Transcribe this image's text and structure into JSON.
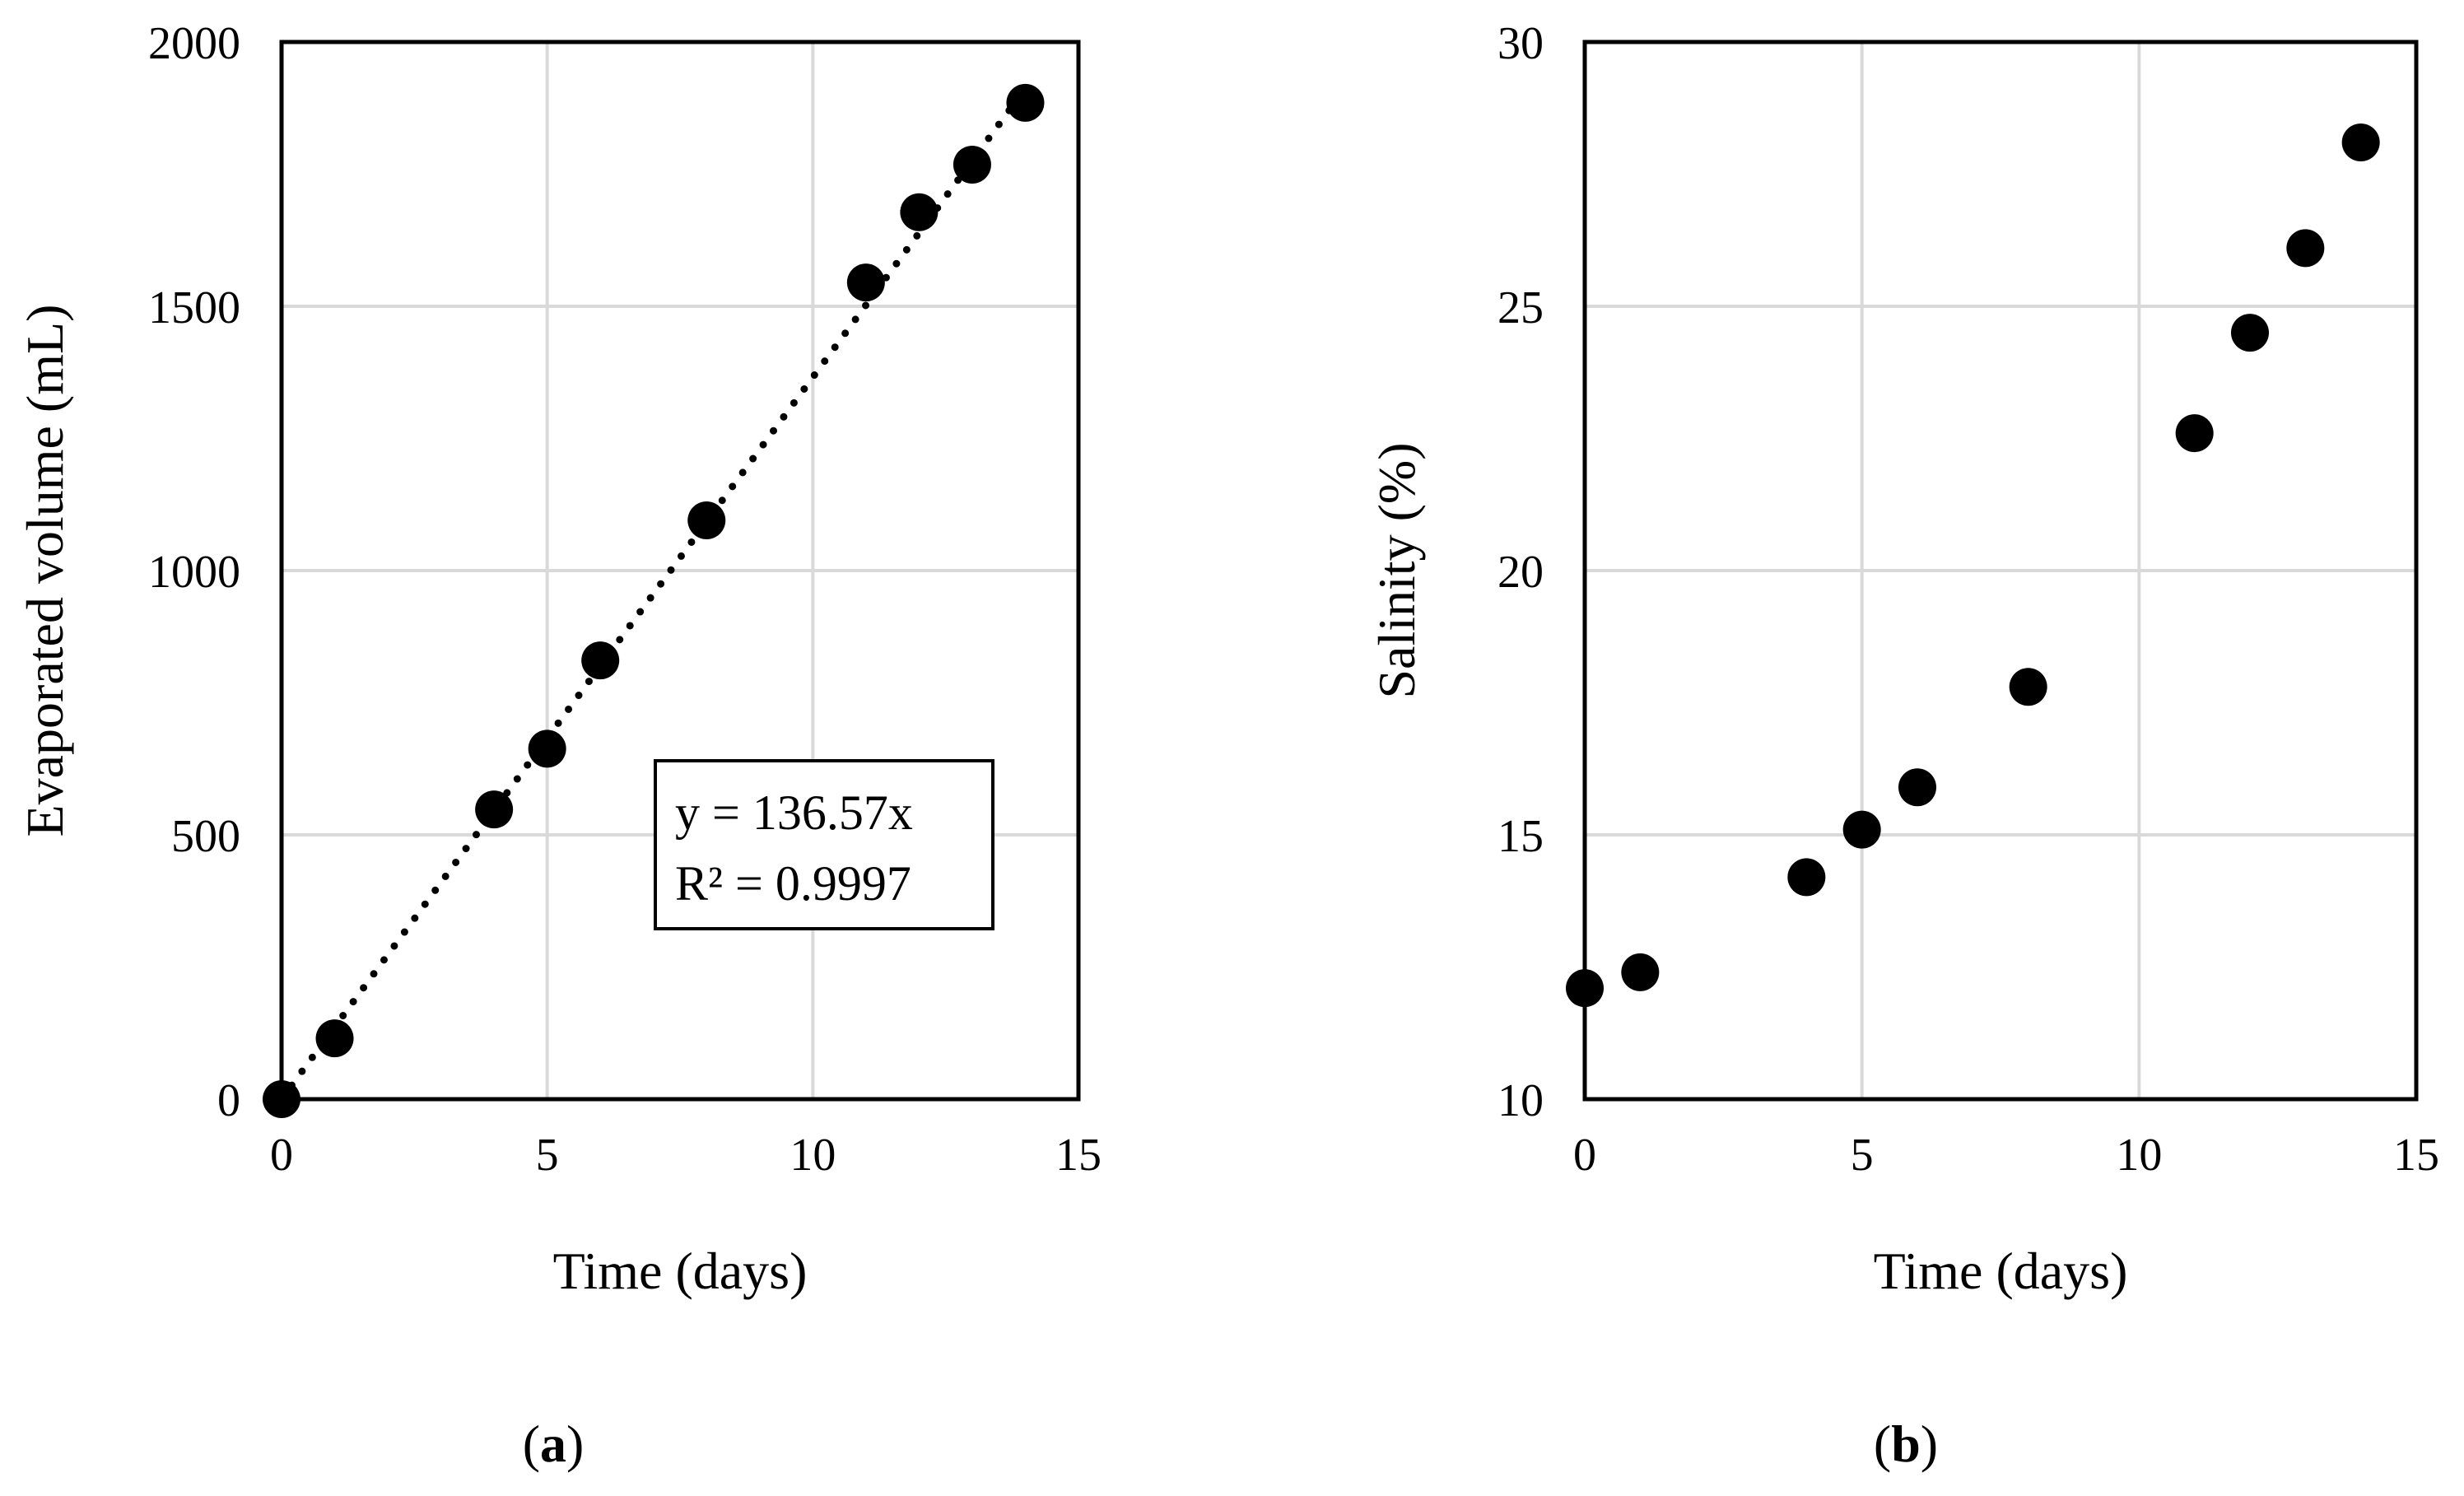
{
  "chart_data": [
    {
      "type": "scatter",
      "panel_label": {
        "open": "(",
        "letter": "a",
        "close": ")"
      },
      "xlabel": "Time (days)",
      "ylabel": "Evaporated volume (mL)",
      "xlim": [
        0,
        15
      ],
      "ylim": [
        0,
        2000
      ],
      "xticks": [
        0,
        5,
        10,
        15
      ],
      "yticks": [
        0,
        500,
        1000,
        1500,
        2000
      ],
      "grid": true,
      "series": [
        {
          "name": "Evaporated volume",
          "x": [
            0,
            1,
            4,
            5,
            6,
            8,
            11,
            12,
            13,
            14
          ],
          "y": [
            0,
            115,
            548,
            663,
            830,
            1095,
            1545,
            1678,
            1768,
            1885
          ]
        }
      ],
      "trendline": {
        "type": "linear",
        "slope": 136.57,
        "intercept": 0,
        "x_range": [
          0,
          14
        ],
        "style": "dotted"
      },
      "annotation": {
        "line1": "y = 136.57x",
        "line2": "R² = 0.9997",
        "position": "lower-right"
      }
    },
    {
      "type": "scatter",
      "panel_label": {
        "open": "(",
        "letter": "b",
        "close": ")"
      },
      "xlabel": "Time (days)",
      "ylabel": "Salinity (%)",
      "xlim": [
        0,
        15
      ],
      "ylim": [
        10,
        30
      ],
      "xticks": [
        0,
        5,
        10,
        15
      ],
      "yticks": [
        10,
        15,
        20,
        25,
        30
      ],
      "grid": true,
      "series": [
        {
          "name": "Salinity",
          "x": [
            0,
            1,
            4,
            5,
            6,
            8,
            11,
            12,
            13,
            14
          ],
          "y": [
            12.1,
            12.4,
            14.2,
            15.1,
            15.9,
            17.8,
            22.6,
            24.5,
            26.1,
            28.1
          ]
        }
      ]
    }
  ]
}
